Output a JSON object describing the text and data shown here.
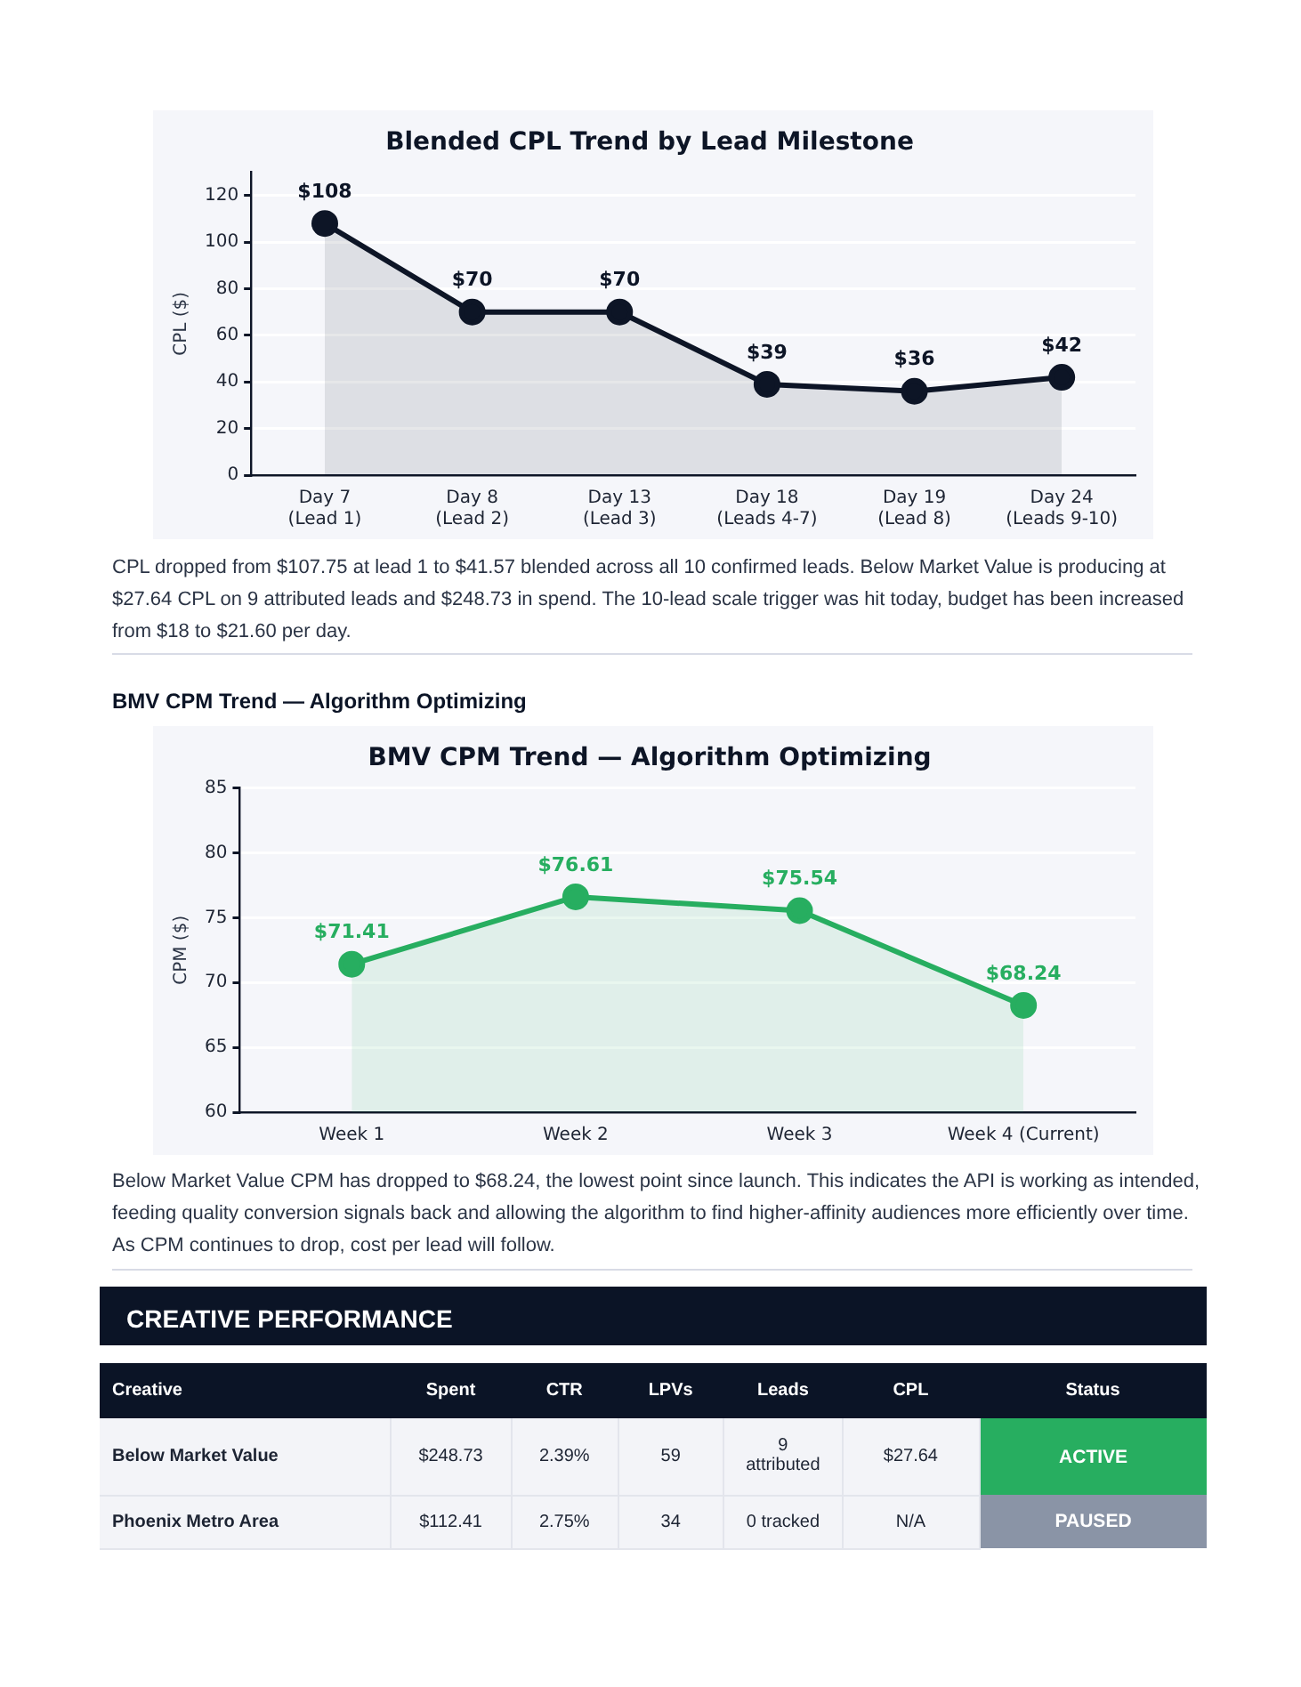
{
  "chart_data": [
    {
      "type": "area",
      "title": "Blended CPL Trend by Lead Milestone",
      "ylabel": "CPL ($)",
      "categories": [
        "Day 7\n(Lead 1)",
        "Day 8\n(Lead 2)",
        "Day 13\n(Lead 3)",
        "Day 18\n(Leads 4-7)",
        "Day 19\n(Lead 8)",
        "Day 24\n(Leads 9-10)"
      ],
      "series": [
        {
          "color": "#0d1526",
          "values": [
            108,
            70,
            70,
            39,
            36,
            42
          ],
          "value_labels": [
            "$108",
            "$70",
            "$70",
            "$39",
            "$36",
            "$42"
          ]
        }
      ],
      "ylim": [
        0,
        130
      ],
      "yticks": [
        0,
        20,
        40,
        60,
        80,
        100,
        120
      ],
      "grid": "y",
      "marker": "circle",
      "annotations": [
        "CPL dropped from $107.75 at lead 1 to $41.57 blended across all 10 confirmed leads. Below Market Value is producing at $27.64 CPL on 9 attributed leads and $248.73 in spend. The 10-lead scale trigger was hit today, budget has been increased from $18 to $21.60 per day."
      ]
    },
    {
      "type": "area",
      "subtitle": "BMV CPM Trend — Algorithm Optimizing",
      "title": "BMV CPM Trend — Algorithm Optimizing",
      "ylabel": "CPM ($)",
      "categories": [
        "Week 1",
        "Week 2",
        "Week 3",
        "Week 4 (Current)"
      ],
      "series": [
        {
          "color": "#27ae60",
          "values": [
            71.41,
            76.61,
            75.54,
            68.24
          ],
          "value_labels": [
            "$71.41",
            "$76.61",
            "$75.54",
            "$68.24"
          ]
        }
      ],
      "ylim": [
        60,
        85
      ],
      "yticks": [
        60,
        65,
        70,
        75,
        80,
        85
      ],
      "grid": "y",
      "marker": "circle",
      "annotations": [
        "Below Market Value CPM has dropped to $68.24, the lowest point since launch. This indicates the API is working as intended, feeding quality conversion signals back and allowing the algorithm to find higher-affinity audiences more efficiently over time. As CPM continues to drop, cost per lead will follow."
      ]
    },
    {
      "type": "other",
      "title": "CREATIVE PERFORMANCE",
      "categories": [
        "Creative",
        "Spent",
        "CTR",
        "LPVs",
        "Leads",
        "CPL",
        "Status"
      ],
      "y_categories": [
        "Below Market Value",
        "Phoenix Metro Area"
      ],
      "cell_labels": [
        [
          "$248.73",
          "2.39%",
          "59",
          "9 attributed",
          "$27.64",
          "ACTIVE"
        ],
        [
          "$112.41",
          "2.75%",
          "34",
          "0 tracked",
          "N/A",
          "PAUSED"
        ]
      ]
    }
  ]
}
